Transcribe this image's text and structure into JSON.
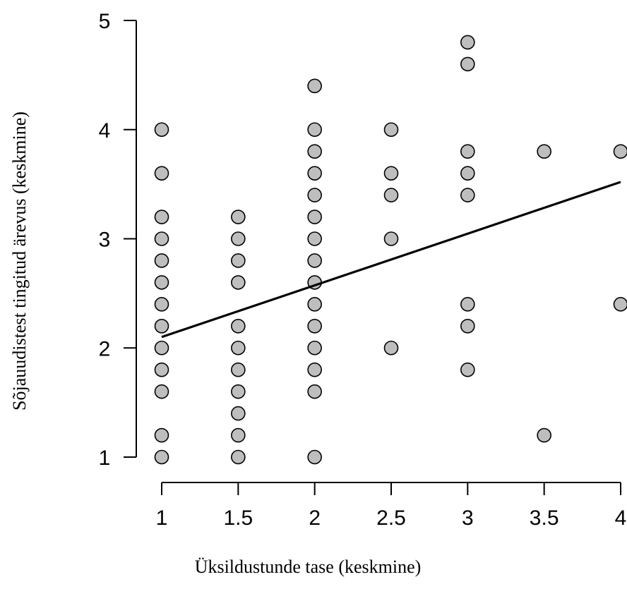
{
  "chart_data": {
    "type": "scatter",
    "xlabel": "Üksildustunde tase (keskmine)",
    "ylabel": "Sõjauudistest tingitud ärevus (keskmine)",
    "xlim": [
      1,
      4
    ],
    "ylim": [
      1,
      5
    ],
    "x_ticks": [
      "1",
      "1.5",
      "2",
      "2.5",
      "3",
      "3.5",
      "4"
    ],
    "y_ticks": [
      "1",
      "2",
      "3",
      "4",
      "5"
    ],
    "grid": false,
    "point_color": "#bebebe",
    "point_edge_color": "#000000",
    "line_color": "#000000",
    "points": [
      [
        1,
        4.0
      ],
      [
        1,
        3.6
      ],
      [
        1,
        3.2
      ],
      [
        1,
        3.0
      ],
      [
        1,
        2.8
      ],
      [
        1,
        2.6
      ],
      [
        1,
        2.4
      ],
      [
        1,
        2.2
      ],
      [
        1,
        2.0
      ],
      [
        1,
        1.8
      ],
      [
        1,
        1.6
      ],
      [
        1,
        1.2
      ],
      [
        1,
        1.0
      ],
      [
        1.5,
        3.2
      ],
      [
        1.5,
        3.0
      ],
      [
        1.5,
        2.8
      ],
      [
        1.5,
        2.6
      ],
      [
        1.5,
        2.2
      ],
      [
        1.5,
        2.0
      ],
      [
        1.5,
        1.8
      ],
      [
        1.5,
        1.6
      ],
      [
        1.5,
        1.4
      ],
      [
        1.5,
        1.2
      ],
      [
        1.5,
        1.0
      ],
      [
        2,
        4.4
      ],
      [
        2,
        4.0
      ],
      [
        2,
        3.8
      ],
      [
        2,
        3.6
      ],
      [
        2,
        3.4
      ],
      [
        2,
        3.2
      ],
      [
        2,
        3.0
      ],
      [
        2,
        2.8
      ],
      [
        2,
        2.6
      ],
      [
        2,
        2.4
      ],
      [
        2,
        2.2
      ],
      [
        2,
        2.0
      ],
      [
        2,
        1.8
      ],
      [
        2,
        1.6
      ],
      [
        2,
        1.0
      ],
      [
        2.5,
        4.0
      ],
      [
        2.5,
        3.6
      ],
      [
        2.5,
        3.4
      ],
      [
        2.5,
        3.0
      ],
      [
        2.5,
        2.0
      ],
      [
        3,
        4.8
      ],
      [
        3,
        4.6
      ],
      [
        3,
        3.8
      ],
      [
        3,
        3.6
      ],
      [
        3,
        3.4
      ],
      [
        3,
        2.4
      ],
      [
        3,
        2.2
      ],
      [
        3,
        1.8
      ],
      [
        3.5,
        3.8
      ],
      [
        3.5,
        1.2
      ],
      [
        4,
        3.8
      ],
      [
        4,
        2.4
      ]
    ],
    "regression_line": {
      "x": [
        1,
        4
      ],
      "y": [
        2.1,
        3.52
      ]
    }
  }
}
